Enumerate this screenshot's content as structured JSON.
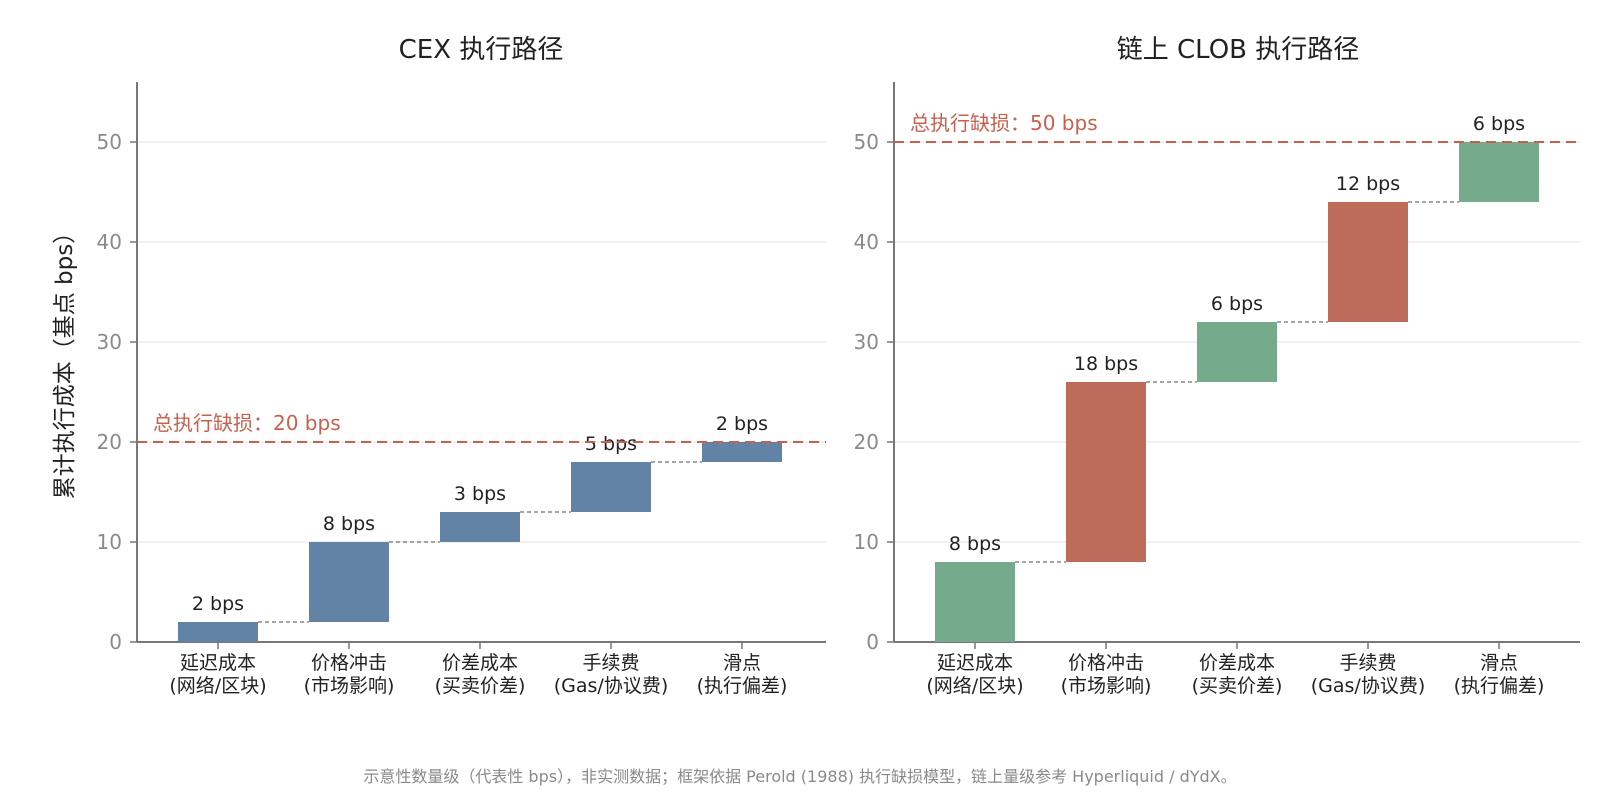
{
  "y_axis_label": "累计执行成本（基点 bps）",
  "footnote": "示意性数量级（代表性 bps），非实测数据；框架依据 Perold (1988) 执行缺损模型，链上量级参考 Hyperliquid / dYdX。",
  "colors": {
    "cex_bar": "#6283a6",
    "clob_low": "#75ab8c",
    "clob_high": "#bd6c5a",
    "total_line": "#c8604e",
    "axis": "#777777",
    "grid": "#e6e6e6",
    "connector": "#888888"
  },
  "chart_data": [
    {
      "type": "bar",
      "subtype": "waterfall",
      "title": "CEX 执行路径",
      "categories": [
        [
          "延迟成本",
          "(网络/区块)"
        ],
        [
          "价格冲击",
          "(市场影响)"
        ],
        [
          "价差成本",
          "(买卖价差)"
        ],
        [
          "手续费",
          "(Gas/协议费)"
        ],
        [
          "滑点",
          "(执行偏差)"
        ]
      ],
      "values": [
        2,
        8,
        3,
        5,
        2
      ],
      "value_labels": [
        "2 bps",
        "8 bps",
        "3 bps",
        "5 bps",
        "2 bps"
      ],
      "bar_colors": [
        "cex_bar",
        "cex_bar",
        "cex_bar",
        "cex_bar",
        "cex_bar"
      ],
      "total": 20,
      "total_label": "总执行缺损：20 bps",
      "ylim": [
        0,
        56
      ],
      "yticks": [
        0,
        10,
        20,
        30,
        40,
        50
      ],
      "ylabel": "累计执行成本（基点 bps）",
      "grid": true
    },
    {
      "type": "bar",
      "subtype": "waterfall",
      "title": "链上 CLOB 执行路径",
      "categories": [
        [
          "延迟成本",
          "(网络/区块)"
        ],
        [
          "价格冲击",
          "(市场影响)"
        ],
        [
          "价差成本",
          "(买卖价差)"
        ],
        [
          "手续费",
          "(Gas/协议费)"
        ],
        [
          "滑点",
          "(执行偏差)"
        ]
      ],
      "values": [
        8,
        18,
        6,
        12,
        6
      ],
      "value_labels": [
        "8 bps",
        "18 bps",
        "6 bps",
        "12 bps",
        "6 bps"
      ],
      "bar_colors": [
        "clob_low",
        "clob_high",
        "clob_low",
        "clob_high",
        "clob_low"
      ],
      "total": 50,
      "total_label": "总执行缺损：50 bps",
      "ylim": [
        0,
        56
      ],
      "yticks": [
        0,
        10,
        20,
        30,
        40,
        50
      ],
      "ylabel": "",
      "grid": true
    }
  ]
}
